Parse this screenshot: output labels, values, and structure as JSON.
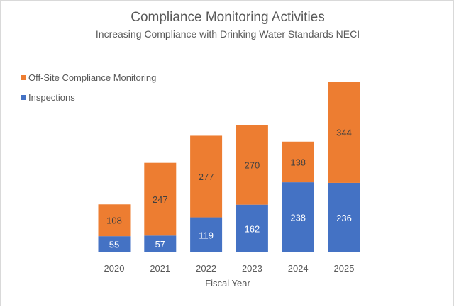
{
  "chart_data": {
    "type": "bar",
    "stacked": true,
    "title": "Compliance Monitoring Activities",
    "subtitle": "Increasing Compliance with Drinking Water Standards NECI",
    "xlabel": "Fiscal Year",
    "ylabel": "",
    "categories": [
      "2020",
      "2021",
      "2022",
      "2023",
      "2024",
      "2025"
    ],
    "series": [
      {
        "name": "Inspections",
        "color": "#4472C4",
        "label_color": "#FFFFFF",
        "values": [
          55,
          57,
          119,
          162,
          238,
          236
        ]
      },
      {
        "name": "Off-Site Compliance Monitoring",
        "color": "#ED7D31",
        "label_color": "#404040",
        "values": [
          108,
          247,
          277,
          270,
          138,
          344
        ]
      }
    ],
    "legend_order": [
      "Off-Site Compliance Monitoring",
      "Inspections"
    ],
    "legend_position": "top-left",
    "y_axis_visible": false,
    "grid": false,
    "data_labels": true
  }
}
